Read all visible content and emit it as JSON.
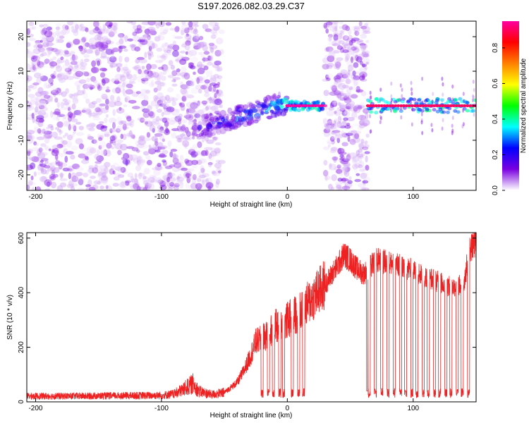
{
  "title": "S197.2026.082.03.29.C37",
  "chart_data": [
    {
      "type": "heatmap",
      "title": "S197.2026.082.03.29.C37",
      "xlabel": "Height of straight line (km)",
      "ylabel": "Frequency (Hz)",
      "xlim": [
        -207,
        150
      ],
      "ylim": [
        -24.5,
        24.5
      ],
      "xticks": [
        -200,
        -100,
        0,
        100
      ],
      "yticks": [
        -20,
        -10,
        0,
        10,
        20
      ],
      "colorbar": {
        "label": "Normalized spectral amplitude",
        "range": [
          0.0,
          0.95
        ],
        "ticks": [
          0.0,
          0.2,
          0.4,
          0.6,
          0.8
        ],
        "colormap": "rainbow",
        "stops": [
          "#ffffff",
          "#7a00e0",
          "#0000ff",
          "#00ffff",
          "#00ff00",
          "#ffff00",
          "#ff8000",
          "#ff0000",
          "#ff00a0"
        ]
      },
      "regions": [
        {
          "name": "noise",
          "x": [
            -207,
            -52
          ],
          "amplitude": 0.1
        },
        {
          "name": "signal_onset",
          "x": [
            -75,
            0
          ],
          "center_freq": [
            -7,
            1
          ],
          "amplitude": 0.45
        },
        {
          "name": "carrier",
          "x": [
            0,
            30
          ],
          "center_freq": 0,
          "amplitude": 0.95
        },
        {
          "name": "gap_noise",
          "x": [
            30,
            64
          ],
          "amplitude": 0.1
        },
        {
          "name": "carrier_pulsed",
          "x": [
            64,
            150
          ],
          "center_freq": 0,
          "amplitude": 0.9
        }
      ]
    },
    {
      "type": "line",
      "xlabel": "Height of straight line (km)",
      "ylabel": "SNR (10 * v/v)",
      "xlim": [
        -207,
        150
      ],
      "ylim": [
        0,
        620
      ],
      "xticks": [
        -200,
        -100,
        0,
        100
      ],
      "yticks": [
        0,
        200,
        400,
        600
      ],
      "series": [
        {
          "name": "SNR",
          "color": "#ee2222",
          "x": [
            -207,
            -180,
            -150,
            -120,
            -100,
            -90,
            -80,
            -75,
            -70,
            -60,
            -50,
            -40,
            -35,
            -30,
            -25,
            -20,
            -15,
            -10,
            -5,
            0,
            10,
            20,
            30,
            40,
            45,
            50,
            55,
            60,
            64,
            70,
            80,
            90,
            100,
            110,
            120,
            130,
            140,
            145,
            150
          ],
          "values": [
            22,
            22,
            23,
            24,
            25,
            30,
            55,
            70,
            40,
            28,
            35,
            70,
            110,
            160,
            220,
            230,
            250,
            280,
            270,
            300,
            330,
            380,
            430,
            500,
            540,
            520,
            490,
            470,
            480,
            520,
            510,
            500,
            480,
            460,
            440,
            420,
            430,
            560,
            580
          ]
        }
      ]
    }
  ]
}
